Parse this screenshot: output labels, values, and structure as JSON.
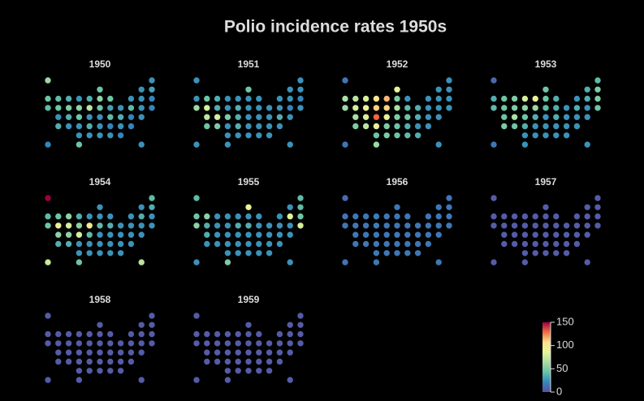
{
  "chart_data": {
    "type": "dot-map",
    "title": "Polio incidence rates 1950s",
    "clim": [
      0,
      150
    ],
    "colorbar_ticks": [
      0,
      50,
      100,
      150
    ],
    "colorscale": [
      "#5e4fa2",
      "#3288bd",
      "#66c2a5",
      "#abdda4",
      "#e6f598",
      "#fee08b",
      "#f46d43",
      "#9e0142"
    ],
    "panels": [
      {
        "title": "1950",
        "values": [
          60,
          25,
          45,
          25,
          30,
          45,
          40,
          35,
          25,
          35,
          55,
          45,
          25,
          25,
          20,
          40,
          45,
          50,
          55,
          70,
          45,
          30,
          25,
          40,
          25,
          20,
          25,
          35,
          45,
          25,
          25,
          40,
          35,
          20,
          25,
          35,
          25,
          25,
          35,
          25,
          20,
          25,
          20,
          25,
          25,
          25,
          25,
          20,
          20,
          45,
          25
        ]
      },
      {
        "title": "1951",
        "values": [
          25,
          25,
          45,
          25,
          25,
          25,
          45,
          35,
          25,
          25,
          25,
          25,
          25,
          25,
          20,
          60,
          80,
          35,
          25,
          35,
          25,
          25,
          25,
          25,
          20,
          25,
          70,
          80,
          50,
          35,
          25,
          25,
          25,
          35,
          25,
          45,
          50,
          25,
          35,
          25,
          25,
          25,
          25,
          25,
          25,
          25,
          25,
          25,
          25,
          25,
          25
        ]
      },
      {
        "title": "1952",
        "values": [
          15,
          25,
          85,
          25,
          25,
          65,
          70,
          80,
          100,
          115,
          50,
          25,
          25,
          25,
          25,
          60,
          80,
          90,
          110,
          110,
          65,
          40,
          35,
          25,
          25,
          25,
          65,
          80,
          130,
          90,
          50,
          45,
          35,
          25,
          25,
          50,
          70,
          95,
          50,
          45,
          35,
          25,
          25,
          45,
          50,
          45,
          40,
          35,
          15,
          60,
          25
        ]
      },
      {
        "title": "1953",
        "values": [
          10,
          40,
          45,
          35,
          50,
          35,
          45,
          50,
          80,
          90,
          45,
          35,
          25,
          35,
          50,
          40,
          45,
          50,
          55,
          60,
          40,
          35,
          25,
          35,
          25,
          45,
          45,
          65,
          45,
          35,
          25,
          35,
          25,
          25,
          25,
          50,
          45,
          35,
          25,
          25,
          25,
          25,
          25,
          25,
          25,
          25,
          25,
          25,
          15,
          25,
          25
        ]
      },
      {
        "title": "1954",
        "values": [
          150,
          40,
          25,
          25,
          35,
          40,
          45,
          55,
          35,
          25,
          25,
          25,
          25,
          35,
          25,
          45,
          90,
          80,
          55,
          95,
          40,
          35,
          25,
          25,
          25,
          25,
          55,
          55,
          80,
          40,
          25,
          25,
          25,
          25,
          25,
          35,
          35,
          25,
          25,
          25,
          25,
          25,
          25,
          25,
          25,
          25,
          25,
          25,
          75,
          45,
          70
        ]
      },
      {
        "title": "1955",
        "values": [
          40,
          40,
          90,
          25,
          40,
          45,
          55,
          25,
          25,
          25,
          25,
          25,
          25,
          85,
          45,
          55,
          35,
          25,
          25,
          35,
          35,
          25,
          25,
          25,
          25,
          80,
          35,
          25,
          25,
          25,
          25,
          25,
          25,
          25,
          25,
          25,
          25,
          25,
          25,
          25,
          25,
          25,
          25,
          25,
          25,
          25,
          25,
          25,
          25,
          50,
          25
        ]
      },
      {
        "title": "1956",
        "values": [
          10,
          15,
          15,
          15,
          15,
          15,
          15,
          15,
          18,
          15,
          15,
          15,
          15,
          15,
          15,
          15,
          15,
          15,
          18,
          15,
          15,
          15,
          15,
          15,
          15,
          15,
          15,
          15,
          15,
          15,
          15,
          15,
          15,
          15,
          15,
          15,
          15,
          15,
          15,
          15,
          15,
          15,
          15,
          15,
          15,
          15,
          15,
          15,
          15,
          15,
          15
        ]
      },
      {
        "title": "1957",
        "values": [
          5,
          5,
          5,
          5,
          5,
          5,
          5,
          5,
          5,
          5,
          5,
          5,
          5,
          5,
          5,
          5,
          5,
          5,
          5,
          5,
          5,
          5,
          5,
          5,
          5,
          5,
          5,
          5,
          5,
          5,
          5,
          5,
          5,
          5,
          5,
          5,
          5,
          5,
          5,
          5,
          5,
          5,
          5,
          5,
          5,
          5,
          5,
          5,
          5,
          5,
          5
        ]
      },
      {
        "title": "1958",
        "values": [
          5,
          5,
          5,
          5,
          5,
          5,
          5,
          5,
          5,
          5,
          5,
          5,
          5,
          5,
          5,
          5,
          5,
          5,
          5,
          5,
          5,
          5,
          5,
          5,
          5,
          5,
          5,
          5,
          5,
          5,
          5,
          5,
          5,
          5,
          5,
          5,
          5,
          5,
          5,
          5,
          5,
          5,
          5,
          5,
          5,
          5,
          5,
          5,
          5,
          5,
          5
        ]
      },
      {
        "title": "1959",
        "values": [
          5,
          5,
          5,
          5,
          5,
          5,
          5,
          5,
          5,
          5,
          5,
          5,
          5,
          5,
          5,
          5,
          5,
          5,
          5,
          5,
          5,
          5,
          5,
          5,
          5,
          5,
          5,
          5,
          5,
          5,
          5,
          5,
          5,
          5,
          5,
          5,
          5,
          5,
          5,
          5,
          5,
          5,
          5,
          5,
          5,
          5,
          5,
          5,
          5,
          5,
          5
        ]
      }
    ]
  }
}
